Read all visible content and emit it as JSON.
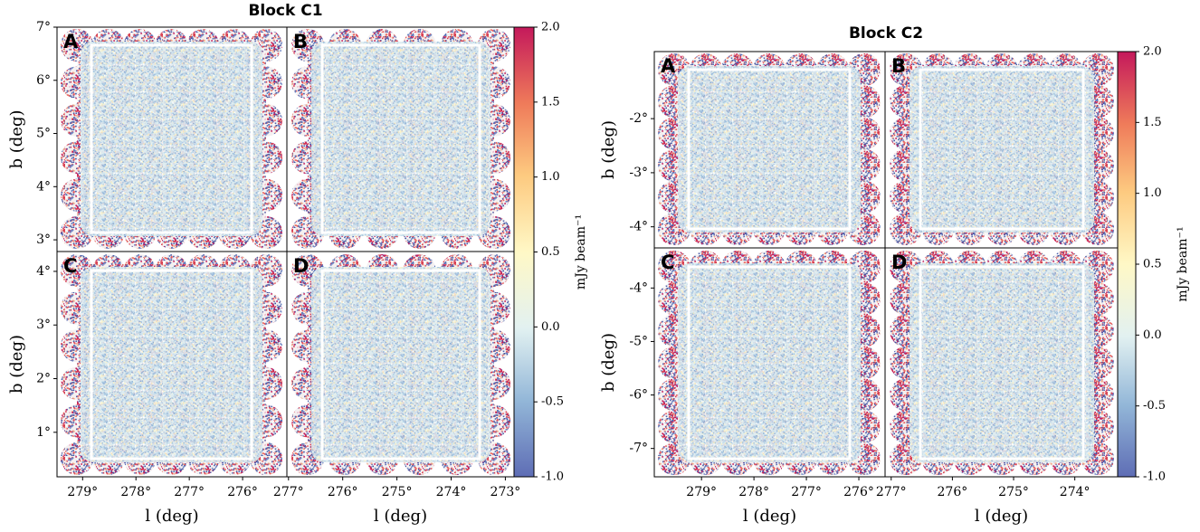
{
  "chart_data": [
    {
      "type": "image",
      "title": "Block C1",
      "panels": [
        "A",
        "B",
        "C",
        "D"
      ],
      "x_label": "l (deg)",
      "y_label": "b (deg)",
      "columns": [
        {
          "xlim": [
            279.48,
            275.17
          ],
          "xticks": [
            {
              "value": 279,
              "label": "279°"
            },
            {
              "value": 278,
              "label": "278°"
            },
            {
              "value": 277,
              "label": "277°"
            },
            {
              "value": 276,
              "label": "276°"
            }
          ]
        },
        {
          "xlim": [
            277.03,
            272.84
          ],
          "xticks": [
            {
              "value": 277,
              "label": "277°"
            },
            {
              "value": 276,
              "label": "276°"
            },
            {
              "value": 275,
              "label": "275°"
            },
            {
              "value": 274,
              "label": "274°"
            },
            {
              "value": 273,
              "label": "273°"
            }
          ]
        }
      ],
      "rows": [
        {
          "ylim": [
            2.78,
            7.0
          ],
          "yticks": [
            {
              "value": 3,
              "label": "3°"
            },
            {
              "value": 4,
              "label": "4°"
            },
            {
              "value": 5,
              "label": "5°"
            },
            {
              "value": 6,
              "label": "6°"
            },
            {
              "value": 7,
              "label": "7°"
            }
          ]
        },
        {
          "ylim": [
            0.17,
            4.37
          ],
          "yticks": [
            {
              "value": 1,
              "label": "1°"
            },
            {
              "value": 2,
              "label": "2°"
            },
            {
              "value": 3,
              "label": "3°"
            },
            {
              "value": 4,
              "label": "4°"
            }
          ]
        }
      ],
      "colorbar": {
        "label": "mJy beam⁻¹",
        "lim": [
          -1.0,
          2.0
        ],
        "ticks": [
          {
            "value": -1,
            "label": "-1.0"
          },
          -0.5,
          {
            "value": 0,
            "label": "0.0"
          },
          0.5,
          {
            "value": 1,
            "label": "1.0"
          },
          1.5,
          {
            "value": 2,
            "label": "2.0"
          }
        ]
      }
    },
    {
      "type": "image",
      "title": "Block C2",
      "panels": [
        "A",
        "B",
        "C",
        "D"
      ],
      "x_label": "l (deg)",
      "y_label": "b (deg)",
      "columns": [
        {
          "xlim": [
            279.9,
            275.5
          ],
          "xticks": [
            {
              "value": 279,
              "label": "279°"
            },
            {
              "value": 278,
              "label": "278°"
            },
            {
              "value": 277,
              "label": "277°"
            },
            {
              "value": 276,
              "label": "276°"
            }
          ]
        },
        {
          "xlim": [
            277.1,
            273.3
          ],
          "xticks": [
            {
              "value": 277,
              "label": "277°"
            },
            {
              "value": 276,
              "label": "276°"
            },
            {
              "value": 275,
              "label": "275°"
            },
            {
              "value": 274,
              "label": "274°"
            }
          ]
        }
      ],
      "rows": [
        {
          "ylim": [
            -4.39,
            -0.76
          ],
          "yticks": [
            {
              "value": -4,
              "label": "-4°"
            },
            {
              "value": -3,
              "label": "-3°"
            },
            {
              "value": -2,
              "label": "-2°"
            }
          ]
        },
        {
          "ylim": [
            -7.53,
            -3.25
          ],
          "yticks": [
            {
              "value": -7,
              "label": "-7°"
            },
            {
              "value": -6,
              "label": "-6°"
            },
            {
              "value": -5,
              "label": "-5°"
            },
            {
              "value": -4,
              "label": "-4°"
            }
          ]
        }
      ],
      "colorbar": {
        "label": "mJy beam⁻¹",
        "lim": [
          -1.0,
          2.0
        ],
        "ticks": [
          {
            "value": -1,
            "label": "-1.0"
          },
          -0.5,
          {
            "value": 0,
            "label": "0.0"
          },
          0.5,
          {
            "value": 1,
            "label": "1.0"
          },
          1.5,
          {
            "value": 2,
            "label": "2.0"
          }
        ]
      }
    }
  ]
}
